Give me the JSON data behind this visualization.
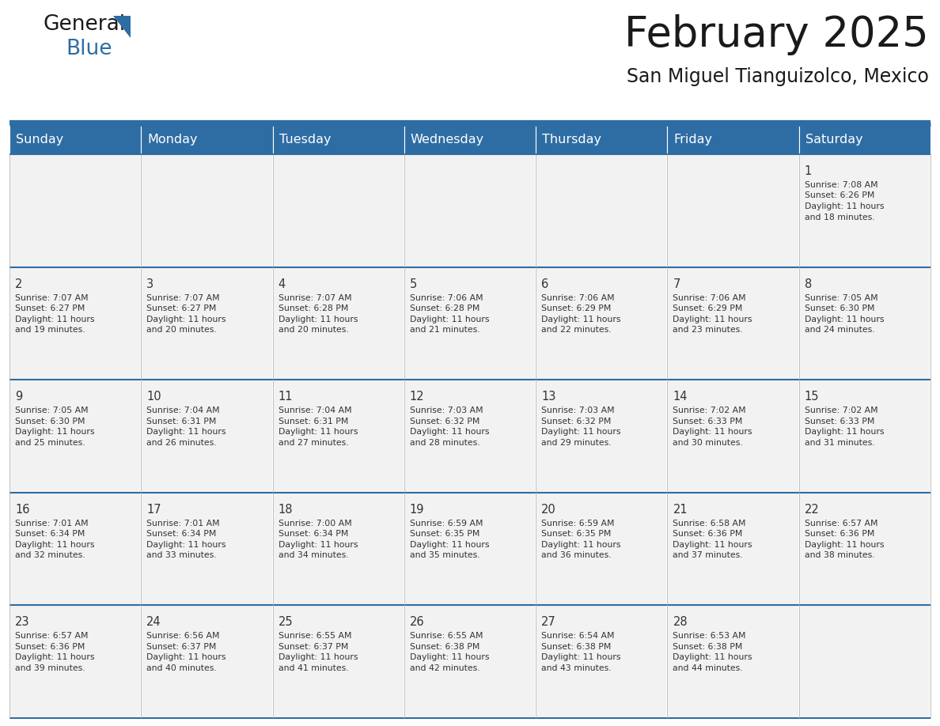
{
  "title": "February 2025",
  "subtitle": "San Miguel Tianguizolco, Mexico",
  "header_bg": "#2E6DA4",
  "header_text": "#FFFFFF",
  "cell_bg": "#F2F2F2",
  "border_color": "#2E6DA4",
  "grid_line_color": "#AAAAAA",
  "day_headers": [
    "Sunday",
    "Monday",
    "Tuesday",
    "Wednesday",
    "Thursday",
    "Friday",
    "Saturday"
  ],
  "days": [
    {
      "day": 1,
      "col": 6,
      "row": 0,
      "sunrise": "7:08 AM",
      "sunset": "6:26 PM",
      "daylight": "11 hours and 18 minutes."
    },
    {
      "day": 2,
      "col": 0,
      "row": 1,
      "sunrise": "7:07 AM",
      "sunset": "6:27 PM",
      "daylight": "11 hours and 19 minutes."
    },
    {
      "day": 3,
      "col": 1,
      "row": 1,
      "sunrise": "7:07 AM",
      "sunset": "6:27 PM",
      "daylight": "11 hours and 20 minutes."
    },
    {
      "day": 4,
      "col": 2,
      "row": 1,
      "sunrise": "7:07 AM",
      "sunset": "6:28 PM",
      "daylight": "11 hours and 20 minutes."
    },
    {
      "day": 5,
      "col": 3,
      "row": 1,
      "sunrise": "7:06 AM",
      "sunset": "6:28 PM",
      "daylight": "11 hours and 21 minutes."
    },
    {
      "day": 6,
      "col": 4,
      "row": 1,
      "sunrise": "7:06 AM",
      "sunset": "6:29 PM",
      "daylight": "11 hours and 22 minutes."
    },
    {
      "day": 7,
      "col": 5,
      "row": 1,
      "sunrise": "7:06 AM",
      "sunset": "6:29 PM",
      "daylight": "11 hours and 23 minutes."
    },
    {
      "day": 8,
      "col": 6,
      "row": 1,
      "sunrise": "7:05 AM",
      "sunset": "6:30 PM",
      "daylight": "11 hours and 24 minutes."
    },
    {
      "day": 9,
      "col": 0,
      "row": 2,
      "sunrise": "7:05 AM",
      "sunset": "6:30 PM",
      "daylight": "11 hours and 25 minutes."
    },
    {
      "day": 10,
      "col": 1,
      "row": 2,
      "sunrise": "7:04 AM",
      "sunset": "6:31 PM",
      "daylight": "11 hours and 26 minutes."
    },
    {
      "day": 11,
      "col": 2,
      "row": 2,
      "sunrise": "7:04 AM",
      "sunset": "6:31 PM",
      "daylight": "11 hours and 27 minutes."
    },
    {
      "day": 12,
      "col": 3,
      "row": 2,
      "sunrise": "7:03 AM",
      "sunset": "6:32 PM",
      "daylight": "11 hours and 28 minutes."
    },
    {
      "day": 13,
      "col": 4,
      "row": 2,
      "sunrise": "7:03 AM",
      "sunset": "6:32 PM",
      "daylight": "11 hours and 29 minutes."
    },
    {
      "day": 14,
      "col": 5,
      "row": 2,
      "sunrise": "7:02 AM",
      "sunset": "6:33 PM",
      "daylight": "11 hours and 30 minutes."
    },
    {
      "day": 15,
      "col": 6,
      "row": 2,
      "sunrise": "7:02 AM",
      "sunset": "6:33 PM",
      "daylight": "11 hours and 31 minutes."
    },
    {
      "day": 16,
      "col": 0,
      "row": 3,
      "sunrise": "7:01 AM",
      "sunset": "6:34 PM",
      "daylight": "11 hours and 32 minutes."
    },
    {
      "day": 17,
      "col": 1,
      "row": 3,
      "sunrise": "7:01 AM",
      "sunset": "6:34 PM",
      "daylight": "11 hours and 33 minutes."
    },
    {
      "day": 18,
      "col": 2,
      "row": 3,
      "sunrise": "7:00 AM",
      "sunset": "6:34 PM",
      "daylight": "11 hours and 34 minutes."
    },
    {
      "day": 19,
      "col": 3,
      "row": 3,
      "sunrise": "6:59 AM",
      "sunset": "6:35 PM",
      "daylight": "11 hours and 35 minutes."
    },
    {
      "day": 20,
      "col": 4,
      "row": 3,
      "sunrise": "6:59 AM",
      "sunset": "6:35 PM",
      "daylight": "11 hours and 36 minutes."
    },
    {
      "day": 21,
      "col": 5,
      "row": 3,
      "sunrise": "6:58 AM",
      "sunset": "6:36 PM",
      "daylight": "11 hours and 37 minutes."
    },
    {
      "day": 22,
      "col": 6,
      "row": 3,
      "sunrise": "6:57 AM",
      "sunset": "6:36 PM",
      "daylight": "11 hours and 38 minutes."
    },
    {
      "day": 23,
      "col": 0,
      "row": 4,
      "sunrise": "6:57 AM",
      "sunset": "6:36 PM",
      "daylight": "11 hours and 39 minutes."
    },
    {
      "day": 24,
      "col": 1,
      "row": 4,
      "sunrise": "6:56 AM",
      "sunset": "6:37 PM",
      "daylight": "11 hours and 40 minutes."
    },
    {
      "day": 25,
      "col": 2,
      "row": 4,
      "sunrise": "6:55 AM",
      "sunset": "6:37 PM",
      "daylight": "11 hours and 41 minutes."
    },
    {
      "day": 26,
      "col": 3,
      "row": 4,
      "sunrise": "6:55 AM",
      "sunset": "6:38 PM",
      "daylight": "11 hours and 42 minutes."
    },
    {
      "day": 27,
      "col": 4,
      "row": 4,
      "sunrise": "6:54 AM",
      "sunset": "6:38 PM",
      "daylight": "11 hours and 43 minutes."
    },
    {
      "day": 28,
      "col": 5,
      "row": 4,
      "sunrise": "6:53 AM",
      "sunset": "6:38 PM",
      "daylight": "11 hours and 44 minutes."
    }
  ],
  "n_rows": 5,
  "n_cols": 7,
  "figw": 11.88,
  "figh": 9.18,
  "dpi": 100,
  "logo_general_color": "#1a1a1a",
  "logo_blue_color": "#2E6DA4",
  "logo_triangle_color": "#2E6DA4",
  "title_color": "#1a1a1a",
  "subtitle_color": "#1a1a1a",
  "title_fontsize": 38,
  "subtitle_fontsize": 17,
  "header_fontsize": 11.5,
  "day_num_fontsize": 10.5,
  "cell_text_fontsize": 7.8
}
